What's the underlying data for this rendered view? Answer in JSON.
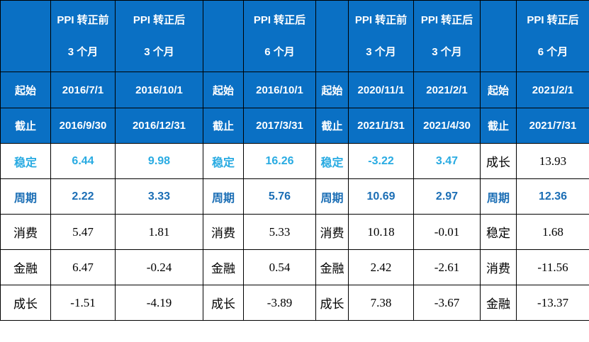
{
  "palette": {
    "header_blue": "#0a70c4",
    "light_blue": "#29abe2",
    "dark_blue": "#1b6eb5",
    "grid_line": "#000000",
    "header_text": "#ffffff",
    "body_text": "#000000",
    "page_bg": "#ffffff"
  },
  "header_cells": [
    {
      "line1": "",
      "line2": ""
    },
    {
      "line1": "PPI 转正前",
      "line2": "3 个月"
    },
    {
      "line1": "PPI 转正后",
      "line2": "3 个月"
    },
    {
      "line1": "",
      "line2": ""
    },
    {
      "line1": "PPI 转正后",
      "line2": "6 个月"
    },
    {
      "line1": "",
      "line2": ""
    },
    {
      "line1": "PPI 转正前",
      "line2": "3 个月"
    },
    {
      "line1": "PPI 转正后",
      "line2": "3 个月"
    },
    {
      "line1": "",
      "line2": ""
    },
    {
      "line1": "PPI 转正后",
      "line2": "6 个月"
    }
  ],
  "rows": [
    {
      "cells": [
        "起始",
        "2016/7/1",
        "2016/10/1",
        "起始",
        "2016/10/1",
        "起始",
        "2020/11/1",
        "2021/2/1",
        "起始",
        "2021/2/1"
      ]
    },
    {
      "cells": [
        "截止",
        "2016/9/30",
        "2016/12/31",
        "截止",
        "2017/3/31",
        "截止",
        "2021/1/31",
        "2021/4/30",
        "截止",
        "2021/7/31"
      ]
    },
    {
      "cells": [
        "稳定",
        "6.44",
        "9.98",
        "稳定",
        "16.26",
        "稳定",
        "-3.22",
        "3.47",
        "成长",
        "13.93"
      ]
    },
    {
      "cells": [
        "周期",
        "2.22",
        "3.33",
        "周期",
        "5.76",
        "周期",
        "10.69",
        "2.97",
        "周期",
        "12.36"
      ]
    },
    {
      "cells": [
        "消费",
        "5.47",
        "1.81",
        "消费",
        "5.33",
        "消费",
        "10.18",
        "-0.01",
        "稳定",
        "1.68"
      ]
    },
    {
      "cells": [
        "金融",
        "6.47",
        "-0.24",
        "金融",
        "0.54",
        "金融",
        "2.42",
        "-2.61",
        "消费",
        "-11.56"
      ]
    },
    {
      "cells": [
        "成长",
        "-1.51",
        "-4.19",
        "成长",
        "-3.89",
        "成长",
        "7.38",
        "-3.67",
        "金融",
        "-13.37"
      ]
    }
  ],
  "chart_data": {
    "type": "table",
    "row_labels": [
      "起始",
      "截止",
      "稳定",
      "周期",
      "消费",
      "金融",
      "成长"
    ],
    "periods": [
      {
        "header": "PPI 转正前 3 个月",
        "起始": "2016/7/1",
        "截止": "2016/9/30",
        "values": {
          "稳定": 6.44,
          "周期": 2.22,
          "消费": 5.47,
          "金融": 6.47,
          "成长": -1.51
        }
      },
      {
        "header": "PPI 转正后 3 个月",
        "起始": "2016/10/1",
        "截止": "2016/12/31",
        "values": {
          "稳定": 9.98,
          "周期": 3.33,
          "消费": 1.81,
          "金融": -0.24,
          "成长": -4.19
        }
      },
      {
        "header": "PPI 转正后 6 个月",
        "起始": "2016/10/1",
        "截止": "2017/3/31",
        "values": {
          "稳定": 16.26,
          "周期": 5.76,
          "消费": 5.33,
          "金融": 0.54,
          "成长": -3.89
        }
      },
      {
        "header": "PPI 转正前 3 个月",
        "起始": "2020/11/1",
        "截止": "2021/1/31",
        "values": {
          "稳定": -3.22,
          "周期": 10.69,
          "消费": 10.18,
          "金融": 2.42,
          "成长": 7.38
        }
      },
      {
        "header": "PPI 转正后 3 个月",
        "起始": "2021/2/1",
        "截止": "2021/4/30",
        "values": {
          "稳定": 3.47,
          "周期": 2.97,
          "消费": -0.01,
          "金融": -2.61,
          "成长": -3.67
        }
      },
      {
        "header": "PPI 转正后 6 个月",
        "起始": "2021/2/1",
        "截止": "2021/7/31",
        "row_order": [
          "成长",
          "周期",
          "稳定",
          "消费",
          "金融"
        ],
        "values": {
          "成长": 13.93,
          "周期": 12.36,
          "稳定": 1.68,
          "消费": -11.56,
          "金融": -13.37
        }
      }
    ],
    "highlight_rows": {
      "稳定": "light_blue",
      "周期": "dark_blue"
    },
    "layout": {
      "grid": "on",
      "header_background": "header_blue",
      "date_rows_background": "header_blue"
    }
  }
}
